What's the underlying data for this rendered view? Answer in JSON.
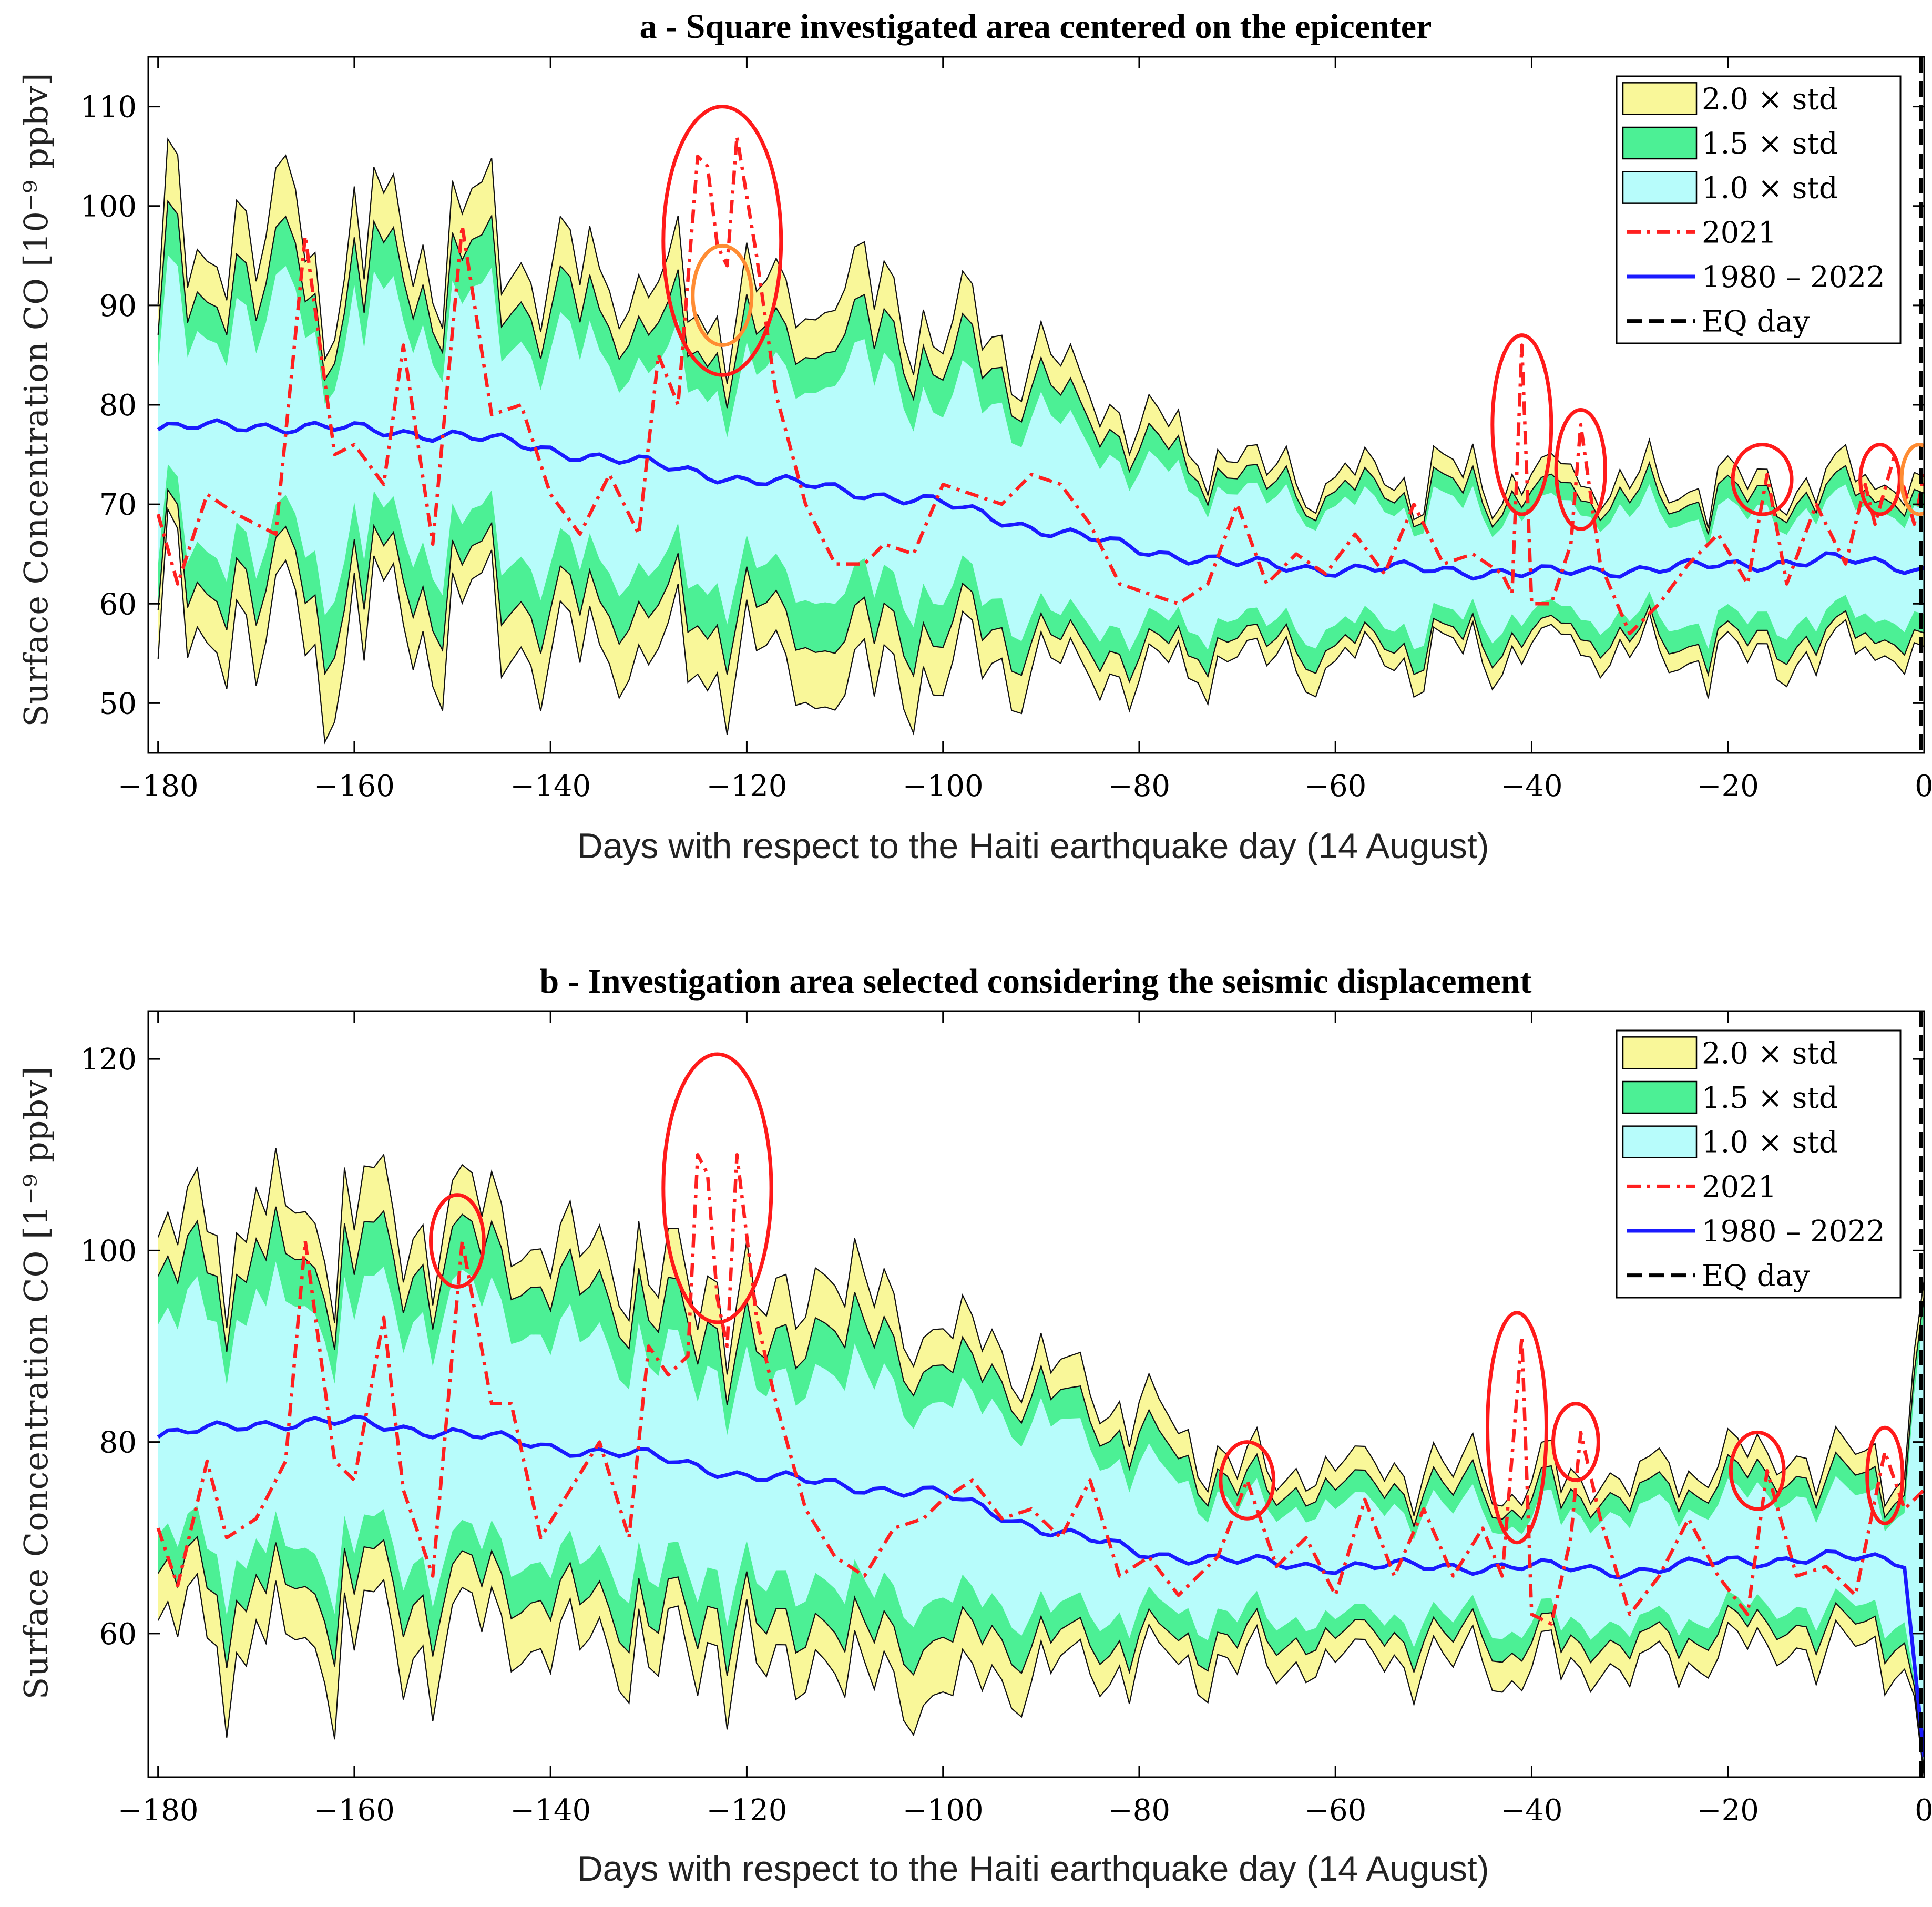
{
  "colors": {
    "band2": "#f9f799",
    "band15": "#4cf095",
    "band1": "#b7fcfb",
    "series2021": "#ff2020",
    "mean": "#1a1aff",
    "eq": "#000000",
    "highlight_red": "#ff1a1a",
    "highlight_orange": "#ff8c33"
  },
  "chart_data": [
    {
      "type": "area",
      "title": "a - Square investigated area centered on the epicenter",
      "xlabel": "Days with respect to the Haiti earthquake day (14 August)",
      "ylabel": "Surface Concentration CO [10⁻⁹ ppbv]",
      "xlim": [
        -181,
        0
      ],
      "ylim": [
        45,
        115
      ],
      "xticks": [
        -180,
        -160,
        -140,
        -120,
        -100,
        -80,
        -60,
        -40,
        -20,
        0
      ],
      "xtick_labels": [
        "−180",
        "−160",
        "−140",
        "−120",
        "−100",
        "−80",
        "−60",
        "−40",
        "−20",
        "0"
      ],
      "yticks": [
        50,
        60,
        70,
        80,
        90,
        100,
        110
      ],
      "ytick_labels": [
        "50",
        "60",
        "70",
        "80",
        "90",
        "100",
        "110"
      ],
      "legend": {
        "position": "top-right",
        "entries": [
          "2.0 × std",
          "1.5 × std",
          "1.0 × std",
          "2021",
          "1980 – 2022",
          "EQ day"
        ]
      },
      "mean_1980_2022": {
        "x": [
          -180,
          -170,
          -160,
          -150,
          -140,
          -130,
          -120,
          -110,
          -100,
          -90,
          -80,
          -70,
          -60,
          -50,
          -40,
          -30,
          -20,
          -10,
          0
        ],
        "y": [
          77.5,
          78,
          77.5,
          77,
          75.5,
          74,
          72.5,
          71.5,
          70,
          67.5,
          65.5,
          64,
          63.5,
          63.5,
          63,
          63.5,
          63.8,
          64.5,
          63.5
        ]
      },
      "std1_upper": {
        "x": [
          -180,
          -170,
          -160,
          -150,
          -140,
          -130,
          -120,
          -110,
          -100,
          -90,
          -80,
          -70,
          -60,
          -50,
          -40,
          -30,
          -20,
          -10,
          0
        ],
        "y": [
          87,
          89,
          88,
          88,
          86,
          84,
          82,
          85,
          80,
          79,
          74,
          70.5,
          70,
          69.5,
          69,
          69,
          69,
          70,
          69
        ]
      },
      "std1_lower": {
        "x": [
          -180,
          -170,
          -160,
          -150,
          -140,
          -130,
          -120,
          -110,
          -100,
          -90,
          -80,
          -70,
          -60,
          -50,
          -40,
          -30,
          -20,
          -10,
          0
        ],
        "y": [
          67,
          66,
          66.5,
          66,
          64.5,
          63.5,
          63,
          62.5,
          61,
          59,
          58,
          58,
          58,
          58,
          58.5,
          58.5,
          58.5,
          59,
          58.5
        ]
      },
      "std15_upper": {
        "x": [
          -180,
          -170,
          -160,
          -150,
          -140,
          -130,
          -120,
          -110,
          -100,
          -90,
          -80,
          -70,
          -60,
          -50,
          -40,
          -30,
          -20,
          -10,
          0
        ],
        "y": [
          91,
          93,
          92,
          92,
          90,
          88,
          86,
          89,
          84,
          82,
          76.5,
          72,
          71.5,
          71,
          70.5,
          70.5,
          71,
          71.5,
          70.5
        ]
      },
      "std15_lower": {
        "x": [
          -180,
          -170,
          -160,
          -150,
          -140,
          -130,
          -120,
          -110,
          -100,
          -90,
          -80,
          -70,
          -60,
          -50,
          -40,
          -30,
          -20,
          -10,
          0
        ],
        "y": [
          63,
          62,
          62,
          61.5,
          60,
          59.5,
          59,
          58,
          57,
          56.5,
          55.5,
          56,
          56,
          56,
          56.5,
          56.5,
          56.5,
          57,
          56.5
        ]
      },
      "std2_upper": {
        "x": [
          -180,
          -170,
          -160,
          -150,
          -140,
          -130,
          -120,
          -110,
          -100,
          -90,
          -80,
          -70,
          -60,
          -50,
          -40,
          -30,
          -20,
          -10,
          0
        ],
        "y": [
          95,
          98,
          96,
          96,
          94,
          92,
          90,
          94,
          87,
          85,
          79,
          73.5,
          73,
          72.5,
          72,
          72,
          72.5,
          73,
          72
        ]
      },
      "std2_lower": {
        "x": [
          -180,
          -170,
          -160,
          -150,
          -140,
          -130,
          -120,
          -110,
          -100,
          -90,
          -80,
          -70,
          -60,
          -50,
          -40,
          -30,
          -20,
          -10,
          0
        ],
        "y": [
          59,
          57,
          57.5,
          57,
          55.5,
          55,
          54.5,
          53,
          52.5,
          54,
          53.5,
          54,
          54.5,
          54.5,
          55,
          55,
          55,
          55.5,
          55
        ]
      },
      "series_2021": {
        "x": [
          -180,
          -178,
          -175,
          -172,
          -168,
          -165,
          -162,
          -160,
          -157,
          -155,
          -152,
          -149,
          -146,
          -143,
          -140,
          -137,
          -134,
          -131,
          -129,
          -127,
          -125,
          -124,
          -123,
          -122,
          -121,
          -119,
          -117,
          -114,
          -111,
          -108,
          -106,
          -103,
          -100,
          -97,
          -94,
          -91,
          -88,
          -85,
          -82,
          -79,
          -76,
          -73,
          -70,
          -67,
          -64,
          -61,
          -58,
          -55,
          -52,
          -49,
          -46,
          -43,
          -42,
          -41,
          -40,
          -38,
          -36,
          -35,
          -33,
          -30,
          -27,
          -24,
          -21,
          -18,
          -16,
          -14,
          -11,
          -8,
          -6,
          -5,
          -3,
          -1,
          0
        ],
        "y": [
          69,
          62,
          71,
          69,
          67,
          97,
          75,
          76,
          72,
          86,
          66,
          98,
          79,
          80,
          71,
          67,
          73,
          67,
          85,
          80,
          105,
          104,
          96,
          94,
          107,
          95,
          81,
          70,
          64,
          64,
          66,
          65,
          72,
          71,
          70,
          73,
          72,
          68,
          62,
          61,
          60,
          62,
          70,
          62,
          65,
          63,
          67,
          63,
          70,
          64,
          65,
          63,
          61,
          86,
          60,
          60,
          66,
          78,
          64,
          57,
          60,
          64,
          67,
          62,
          73,
          62,
          70,
          64,
          72,
          68,
          75,
          68,
          73
        ]
      },
      "eq_day_x": 0,
      "highlights": [
        {
          "color": "red",
          "center": [
            -122.5,
            96.5
          ],
          "radii_days_ppbv": [
            6,
            13.5
          ]
        },
        {
          "color": "orange",
          "center": [
            -122.5,
            91
          ],
          "radii_days_ppbv": [
            3,
            5
          ]
        },
        {
          "color": "red",
          "center": [
            -41,
            78
          ],
          "radii_days_ppbv": [
            3,
            9
          ]
        },
        {
          "color": "red",
          "center": [
            -35,
            73.5
          ],
          "radii_days_ppbv": [
            2.5,
            6
          ]
        },
        {
          "color": "red",
          "center": [
            -16.5,
            72.5
          ],
          "radii_days_ppbv": [
            3,
            3.5
          ]
        },
        {
          "color": "red",
          "center": [
            -4.5,
            72.5
          ],
          "radii_days_ppbv": [
            2,
            3.5
          ]
        },
        {
          "color": "orange",
          "center": [
            -0.5,
            72.5
          ],
          "radii_days_ppbv": [
            1.8,
            3.5
          ]
        }
      ]
    },
    {
      "type": "area",
      "title": "b - Investigation area selected considering the seismic displacement",
      "xlabel": "Days with respect to the Haiti earthquake day (14 August)",
      "ylabel": "Surface Concentration CO [1⁻⁹ ppbv]",
      "xlim": [
        -181,
        0
      ],
      "ylim": [
        45,
        125
      ],
      "xticks": [
        -180,
        -160,
        -140,
        -120,
        -100,
        -80,
        -60,
        -40,
        -20,
        0
      ],
      "xtick_labels": [
        "−180",
        "−160",
        "−140",
        "−120",
        "−100",
        "−80",
        "−60",
        "−40",
        "−20",
        "0"
      ],
      "yticks": [
        60,
        80,
        100,
        120
      ],
      "ytick_labels": [
        "60",
        "80",
        "100",
        "120"
      ],
      "legend": {
        "position": "top-right",
        "entries": [
          "2.0 × std",
          "1.5 × std",
          "1.0 × std",
          "2021",
          "1980 – 2022",
          "EQ day"
        ]
      },
      "mean_1980_2022": {
        "x": [
          -180,
          -170,
          -160,
          -150,
          -140,
          -130,
          -120,
          -110,
          -100,
          -90,
          -80,
          -70,
          -60,
          -50,
          -40,
          -30,
          -20,
          -10,
          -2,
          0
        ],
        "y": [
          80.5,
          82,
          82,
          81,
          79.5,
          78.5,
          76.5,
          75.5,
          74.5,
          71,
          68.5,
          67.5,
          67,
          67,
          67,
          66.5,
          67.5,
          68,
          67.5,
          47
        ]
      },
      "std1_upper": {
        "x": [
          -180,
          -170,
          -160,
          -150,
          -140,
          -130,
          -120,
          -110,
          -100,
          -90,
          -80,
          -70,
          -60,
          -50,
          -40,
          -30,
          -20,
          -10,
          -2,
          0
        ],
        "y": [
          92,
          95,
          94,
          94,
          91,
          89,
          86,
          88,
          85,
          83,
          77,
          73.5,
          73,
          73,
          72.5,
          72.5,
          73.5,
          74,
          73.5,
          95
        ]
      },
      "std1_lower": {
        "x": [
          -180,
          -170,
          -160,
          -150,
          -140,
          -130,
          -120,
          -110,
          -100,
          -90,
          -80,
          -70,
          -60,
          -50,
          -40,
          -30,
          -20,
          -10,
          -2,
          0
        ],
        "y": [
          70,
          69,
          69.5,
          68,
          67.5,
          66.5,
          66,
          65.5,
          64.5,
          63,
          62,
          62,
          61.5,
          61.5,
          61.5,
          61,
          62,
          62.5,
          62,
          47
        ]
      },
      "std15_upper": {
        "x": [
          -180,
          -170,
          -160,
          -150,
          -140,
          -130,
          -120,
          -110,
          -100,
          -90,
          -80,
          -70,
          -60,
          -50,
          -40,
          -30,
          -20,
          -10,
          -2,
          0
        ],
        "y": [
          97,
          100,
          99,
          99,
          96,
          94,
          90,
          93,
          89,
          86,
          80,
          75.5,
          75,
          75,
          74.5,
          74.5,
          75.5,
          76,
          75.5,
          97
        ]
      },
      "std15_lower": {
        "x": [
          -180,
          -170,
          -160,
          -150,
          -140,
          -130,
          -120,
          -110,
          -100,
          -90,
          -80,
          -70,
          -60,
          -50,
          -40,
          -30,
          -20,
          -10,
          -2,
          0
        ],
        "y": [
          66,
          65,
          65.5,
          64,
          63.5,
          62,
          62,
          61,
          60.5,
          60,
          59,
          59.5,
          59.5,
          59.5,
          59.5,
          59,
          60,
          60.5,
          60,
          47
        ]
      },
      "std2_upper": {
        "x": [
          -180,
          -170,
          -160,
          -150,
          -140,
          -130,
          -120,
          -110,
          -100,
          -90,
          -80,
          -70,
          -60,
          -50,
          -40,
          -30,
          -20,
          -10,
          -2,
          0
        ],
        "y": [
          101,
          105,
          104,
          103,
          100,
          98,
          95,
          98,
          93,
          89,
          83,
          77.5,
          77,
          77,
          76.5,
          76.5,
          77.5,
          78,
          77.5,
          99
        ]
      },
      "std2_lower": {
        "x": [
          -180,
          -170,
          -160,
          -150,
          -140,
          -130,
          -120,
          -110,
          -100,
          -90,
          -80,
          -70,
          -60,
          -50,
          -40,
          -30,
          -20,
          -10,
          -2,
          0
        ],
        "y": [
          61,
          60,
          60,
          59,
          58.5,
          58,
          58,
          57,
          55,
          57,
          56.5,
          57,
          57,
          57,
          57,
          56.5,
          57.5,
          58,
          57.5,
          47
        ]
      },
      "series_2021": {
        "x": [
          -180,
          -178,
          -175,
          -173,
          -170,
          -167,
          -165,
          -162,
          -160,
          -157,
          -155,
          -152,
          -149,
          -146,
          -144,
          -141,
          -138,
          -135,
          -132,
          -130,
          -128,
          -126,
          -125,
          -124,
          -123,
          -122,
          -121,
          -119,
          -117,
          -114,
          -111,
          -108,
          -105,
          -102,
          -100,
          -97,
          -94,
          -91,
          -88,
          -85,
          -82,
          -79,
          -76,
          -72,
          -69,
          -66,
          -63,
          -60,
          -57,
          -54,
          -51,
          -48,
          -45,
          -43,
          -41,
          -40,
          -38,
          -36,
          -35,
          -33,
          -30,
          -27,
          -24,
          -21,
          -18,
          -16,
          -13,
          -10,
          -7,
          -4,
          -2,
          0
        ],
        "y": [
          71,
          65,
          78,
          70,
          72,
          78,
          101,
          78,
          76,
          93,
          75,
          66,
          101,
          84,
          84,
          70,
          75,
          80,
          70,
          90,
          87,
          89,
          110,
          108,
          95,
          90,
          110,
          93,
          84,
          73,
          68,
          66,
          71,
          72,
          74,
          76,
          72,
          73,
          70,
          76,
          66,
          68,
          64,
          68,
          76,
          67,
          70,
          64,
          74,
          66,
          73,
          66,
          71,
          66,
          91,
          62,
          61,
          70,
          81,
          72,
          62,
          66,
          72,
          66,
          62,
          77,
          66,
          67,
          64,
          79,
          73,
          75
        ]
      },
      "eq_day_x": 0,
      "highlights": [
        {
          "color": "red",
          "center": [
            -149.5,
            101
          ],
          "radii_days_ppbv": [
            2.7,
            4.8
          ]
        },
        {
          "color": "red",
          "center": [
            -123,
            106.5
          ],
          "radii_days_ppbv": [
            5.5,
            14
          ]
        },
        {
          "color": "red",
          "center": [
            -69,
            76
          ],
          "radii_days_ppbv": [
            2.7,
            4
          ]
        },
        {
          "color": "red",
          "center": [
            -41.5,
            81.5
          ],
          "radii_days_ppbv": [
            3,
            12
          ]
        },
        {
          "color": "red",
          "center": [
            -35.5,
            80
          ],
          "radii_days_ppbv": [
            2.3,
            4
          ]
        },
        {
          "color": "red",
          "center": [
            -17,
            77
          ],
          "radii_days_ppbv": [
            2.7,
            4
          ]
        },
        {
          "color": "red",
          "center": [
            -4,
            76.5
          ],
          "radii_days_ppbv": [
            1.8,
            5
          ]
        }
      ]
    }
  ]
}
